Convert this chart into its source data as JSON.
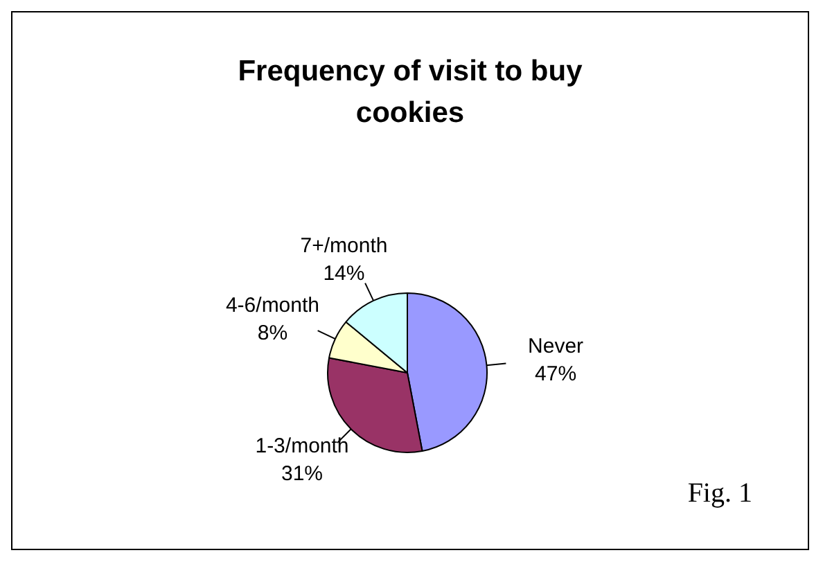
{
  "chart_data": {
    "type": "pie",
    "title": "Frequency of visit to buy cookies",
    "categories": [
      "Never",
      "1-3/month",
      "4-6/month",
      "7+/month"
    ],
    "values": [
      47,
      31,
      8,
      14
    ],
    "value_labels": [
      "47%",
      "31%",
      "8%",
      "14%"
    ],
    "colors": [
      "#9999ff",
      "#993366",
      "#ffffcc",
      "#ccffff"
    ],
    "legend": false,
    "annotations": [
      "Fig. 1"
    ]
  }
}
